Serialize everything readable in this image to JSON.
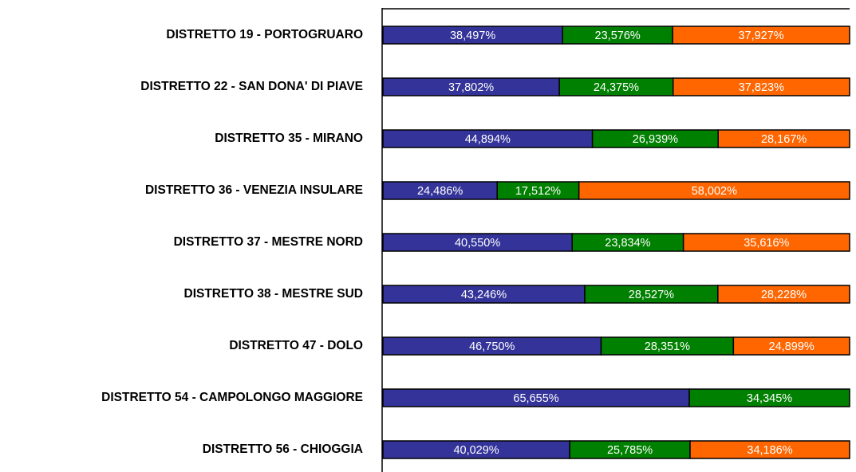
{
  "chart_data": {
    "type": "stacked-bar-horizontal",
    "categories": [
      "DISTRETTO 19 - PORTOGRUARO",
      "DISTRETTO 22 - SAN DONA' DI PIAVE",
      "DISTRETTO 35 - MIRANO",
      "DISTRETTO 36 - VENEZIA INSULARE",
      "DISTRETTO 37 - MESTRE NORD",
      "DISTRETTO 38 - MESTRE SUD",
      "DISTRETTO 47 - DOLO",
      "DISTRETTO 54 - CAMPOLONGO MAGGIORE",
      "DISTRETTO 56 - CHIOGGIA"
    ],
    "series": [
      {
        "color": "#333399",
        "values": [
          38.497,
          37.802,
          44.894,
          24.486,
          40.55,
          43.246,
          46.75,
          65.655,
          40.029
        ],
        "value_labels": [
          "38,497%",
          "37,802%",
          "44,894%",
          "24,486%",
          "40,550%",
          "43,246%",
          "46,750%",
          "65,655%",
          "40,029%"
        ]
      },
      {
        "color": "#008000",
        "values": [
          23.576,
          24.375,
          26.939,
          17.512,
          23.834,
          28.527,
          28.351,
          34.345,
          25.785
        ],
        "value_labels": [
          "23,576%",
          "24,375%",
          "26,939%",
          "17,512%",
          "23,834%",
          "28,527%",
          "28,351%",
          "34,345%",
          "25,785%"
        ]
      },
      {
        "color": "#ff6600",
        "values": [
          37.927,
          37.823,
          28.167,
          58.002,
          35.616,
          28.228,
          24.899,
          null,
          34.186
        ],
        "value_labels": [
          "37,927%",
          "37,823%",
          "28,167%",
          "58,002%",
          "35,616%",
          "28,228%",
          "24,899%",
          null,
          "34,186%"
        ]
      }
    ],
    "xlim": [
      0,
      100
    ]
  }
}
